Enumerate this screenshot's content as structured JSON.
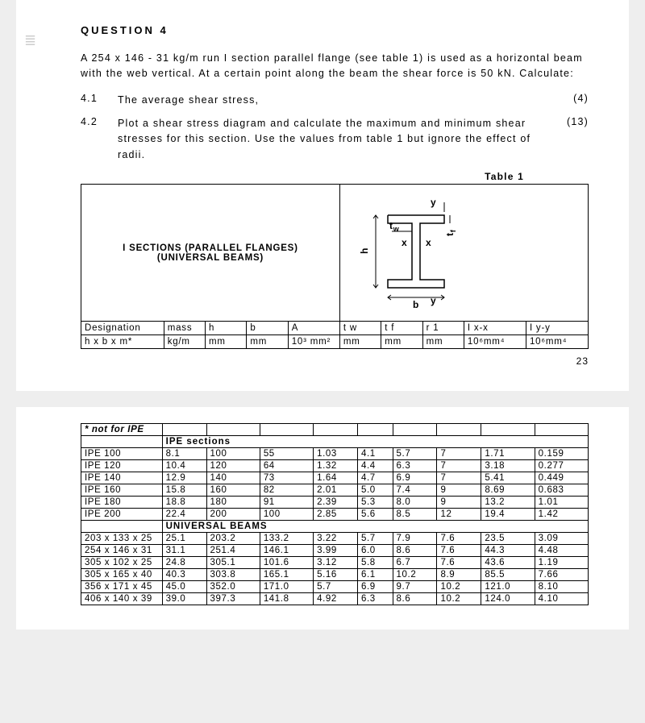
{
  "question": {
    "heading": "QUESTION 4",
    "intro": "A 254 x 146 - 31 kg/m run I section parallel flange (see table 1) is used as a horizontal beam with the web vertical. At a certain point along the beam the shear force is 50 kN. Calculate:",
    "parts": [
      {
        "num": "4.1",
        "text": "The average shear stress,",
        "marks": "(4)"
      },
      {
        "num": "4.2",
        "text": "Plot a shear stress diagram and calculate the maximum and minimum shear stresses for this section. Use the values from table 1 but ignore the effect of radii.",
        "marks": "(13)"
      }
    ]
  },
  "table1": {
    "title": "Table 1",
    "header_block_title": "I SECTIONS (PARALLEL FLANGES)\n(UNIVERSAL BEAMS)",
    "diagram_labels": {
      "y": "y",
      "x": "x",
      "h": "h",
      "b": "b",
      "tw": "t w",
      "tf": "t f"
    },
    "header_row_top": [
      "Designation",
      "mass",
      "h",
      "b",
      "A",
      "t w",
      "t f",
      "r 1",
      "I x-x",
      "I y-y"
    ],
    "header_row_bot": [
      "h x b x m*",
      "kg/m",
      "mm",
      "mm",
      "10³ mm²",
      "mm",
      "mm",
      "mm",
      "10⁶mm⁴",
      "10⁶mm⁴"
    ]
  },
  "page_number": "23",
  "table2": {
    "note": "* not for IPE",
    "subheader_ipe": "IPE sections",
    "ipe_rows": [
      [
        "IPE 100",
        "8.1",
        "100",
        "55",
        "1.03",
        "4.1",
        "5.7",
        "7",
        "1.71",
        "0.159"
      ],
      [
        "IPE 120",
        "10.4",
        "120",
        "64",
        "1.32",
        "4.4",
        "6.3",
        "7",
        "3.18",
        "0.277"
      ],
      [
        "IPE 140",
        "12.9",
        "140",
        "73",
        "1.64",
        "4.7",
        "6.9",
        "7",
        "5.41",
        "0.449"
      ],
      [
        "IPE 160",
        "15.8",
        "160",
        "82",
        "2.01",
        "5.0",
        "7.4",
        "9",
        "8.69",
        "0.683"
      ],
      [
        "IPE 180",
        "18.8",
        "180",
        "91",
        "2.39",
        "5.3",
        "8.0",
        "9",
        "13.2",
        "1.01"
      ],
      [
        "IPE 200",
        "22.4",
        "200",
        "100",
        "2.85",
        "5.6",
        "8.5",
        "12",
        "19.4",
        "1.42"
      ]
    ],
    "subheader_ub": "UNIVERSAL BEAMS",
    "ub_rows": [
      [
        "203 x 133 x 25",
        "25.1",
        "203.2",
        "133.2",
        "3.22",
        "5.7",
        "7.9",
        "7.6",
        "23.5",
        "3.09"
      ],
      [
        "254 x 146 x 31",
        "31.1",
        "251.4",
        "146.1",
        "3.99",
        "6.0",
        "8.6",
        "7.6",
        "44.3",
        "4.48"
      ],
      [
        "305 x 102 x 25",
        "24.8",
        "305.1",
        "101.6",
        "3.12",
        "5.8",
        "6.7",
        "7.6",
        "43.6",
        "1.19"
      ],
      [
        "305 x 165 x 40",
        "40.3",
        "303.8",
        "165.1",
        "5.16",
        "6.1",
        "10.2",
        "8.9",
        "85.5",
        "7.66"
      ],
      [
        "356 x 171 x 45",
        "45.0",
        "352.0",
        "171.0",
        "5.7",
        "6.9",
        "9.7",
        "10.2",
        "121.0",
        "8.10"
      ],
      [
        "406 x 140 x 39",
        "39.0",
        "397.3",
        "141.8",
        "4.92",
        "6.3",
        "8.6",
        "10.2",
        "124.0",
        "4.10"
      ]
    ]
  },
  "colors": {
    "page_bg": "#ffffff",
    "desk_bg": "#eeeeee",
    "border": "#000000",
    "text": "#000000"
  },
  "col_widths_pct": [
    16,
    8,
    8,
    8,
    10,
    8,
    8,
    8,
    12,
    12
  ]
}
